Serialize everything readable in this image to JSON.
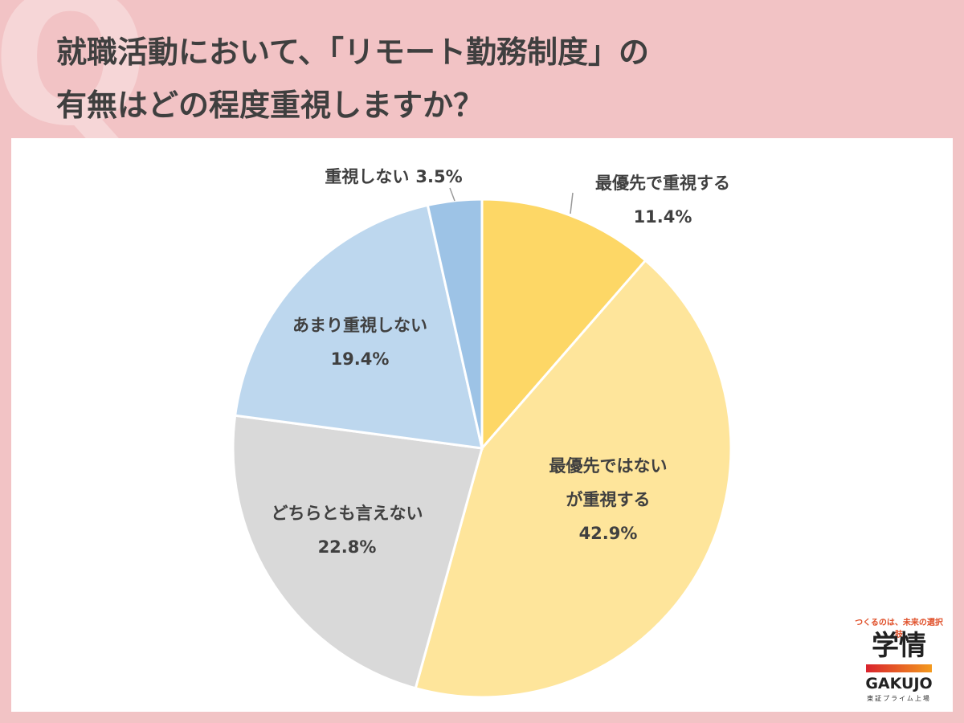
{
  "badge": "Q",
  "chart_data": {
    "type": "pie",
    "title": [
      "就職活動において、「リモート勤務制度」の",
      "有無はどの程度重視しますか？"
    ],
    "categories": [
      "最優先で重視する",
      "最優先ではないが重視する",
      "どちらとも言えない",
      "あまり重視しない",
      "重視しない"
    ],
    "values": [
      11.4,
      42.9,
      22.8,
      19.4,
      3.5
    ],
    "value_labels": [
      "11.4%",
      "42.9%",
      "22.8%",
      "19.4%",
      "3.5%"
    ],
    "colors": [
      "#fdd766",
      "#fee59b",
      "#d9d9d9",
      "#bdd7ee",
      "#9dc3e6"
    ]
  },
  "logo": {
    "tagline": "つくるのは、未来の選択肢",
    "name": "学情",
    "roman": "GAKUJO",
    "listing": "東証プライム上場"
  }
}
